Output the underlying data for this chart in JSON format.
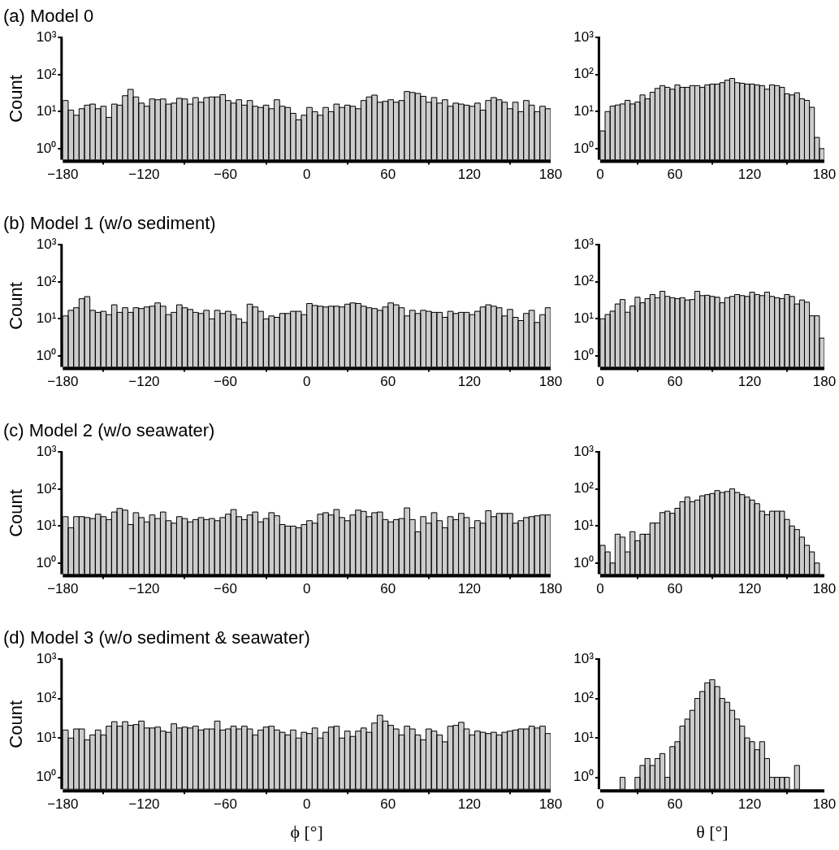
{
  "chart_data": [
    {
      "type": "histogram",
      "title": "(a) Model 0",
      "ylabel": "Count",
      "color": "#cccccc",
      "log": true,
      "ylim": [
        0.5,
        1000
      ],
      "yticks": [
        {
          "value": 1,
          "label": "10⁰"
        },
        {
          "value": 10,
          "label": "10¹"
        },
        {
          "value": 100,
          "label": "10²"
        },
        {
          "value": 1000,
          "label": "10³"
        }
      ],
      "xlim": [
        -180,
        180
      ],
      "xticks": [
        {
          "value": -180,
          "label": "−180"
        },
        {
          "value": -120,
          "label": "−120"
        },
        {
          "value": -60,
          "label": "−60"
        },
        0,
        60,
        120,
        180
      ],
      "bins": [
        -180,
        -176,
        -172,
        -168,
        -164,
        -160,
        -156,
        -152,
        -148,
        -144,
        -140,
        -136,
        -132,
        -128,
        -124,
        -120,
        -116,
        -112,
        -108,
        -104,
        -100,
        -96,
        -92,
        -88,
        -84,
        -80,
        -76,
        -72,
        -68,
        -64,
        -60,
        -56,
        -52,
        -48,
        -44,
        -40,
        -36,
        -32,
        -28,
        -24,
        -20,
        -16,
        -12,
        -8,
        -4,
        0,
        4,
        8,
        12,
        16,
        20,
        24,
        28,
        32,
        36,
        40,
        44,
        48,
        52,
        56,
        60,
        64,
        68,
        72,
        76,
        80,
        84,
        88,
        92,
        96,
        100,
        104,
        108,
        112,
        116,
        120,
        124,
        128,
        132,
        136,
        140,
        144,
        148,
        152,
        156,
        160,
        164,
        168,
        172,
        176,
        180
      ],
      "values": [
        20,
        11,
        8,
        12,
        15,
        16,
        12,
        14,
        7,
        16,
        15,
        27,
        40,
        25,
        17,
        14,
        22,
        21,
        22,
        16,
        17,
        23,
        22,
        16,
        24,
        18,
        24,
        25,
        25,
        29,
        20,
        17,
        21,
        15,
        20,
        14,
        13,
        15,
        12,
        21,
        14,
        13,
        9,
        6,
        8,
        13,
        10,
        8,
        13,
        10,
        16,
        13,
        15,
        14,
        12,
        20,
        25,
        28,
        18,
        19,
        21,
        18,
        20,
        35,
        33,
        31,
        26,
        18,
        24,
        17,
        21,
        14,
        17,
        16,
        15,
        14,
        17,
        11,
        20,
        24,
        21,
        18,
        12,
        18,
        10,
        20,
        15,
        10,
        14,
        12
      ]
    },
    {
      "type": "histogram",
      "color": "#cccccc",
      "log": true,
      "ylim": [
        0.5,
        1000
      ],
      "yticks": [
        {
          "value": 1,
          "label": "10⁰"
        },
        {
          "value": 10,
          "label": "10¹"
        },
        {
          "value": 100,
          "label": "10²"
        },
        {
          "value": 1000,
          "label": "10³"
        }
      ],
      "xlim": [
        0,
        180
      ],
      "xticks": [
        0,
        60,
        120,
        180
      ],
      "bins": [
        0,
        4,
        8,
        12,
        16,
        20,
        24,
        28,
        32,
        36,
        40,
        44,
        48,
        52,
        56,
        60,
        64,
        68,
        72,
        76,
        80,
        84,
        88,
        92,
        96,
        100,
        104,
        108,
        112,
        116,
        120,
        124,
        128,
        132,
        136,
        140,
        144,
        148,
        152,
        156,
        160,
        164,
        168,
        172,
        176,
        180
      ],
      "values": [
        3,
        10,
        14,
        15,
        16,
        20,
        16,
        18,
        28,
        22,
        33,
        42,
        50,
        45,
        40,
        52,
        45,
        45,
        50,
        50,
        45,
        52,
        55,
        55,
        60,
        70,
        78,
        60,
        58,
        55,
        55,
        52,
        50,
        40,
        52,
        50,
        45,
        30,
        28,
        32,
        22,
        20,
        13,
        2,
        1
      ]
    },
    {
      "type": "histogram",
      "title": "(b) Model 1 (w/o sediment)",
      "ylabel": "Count",
      "color": "#cccccc",
      "log": true,
      "ylim": [
        0.5,
        1000
      ],
      "yticks": [
        {
          "value": 1,
          "label": "10⁰"
        },
        {
          "value": 10,
          "label": "10¹"
        },
        {
          "value": 100,
          "label": "10²"
        },
        {
          "value": 1000,
          "label": "10³"
        }
      ],
      "xlim": [
        -180,
        180
      ],
      "xticks": [
        {
          "value": -180,
          "label": "−180"
        },
        {
          "value": -120,
          "label": "−120"
        },
        {
          "value": -60,
          "label": "−60"
        },
        0,
        60,
        120,
        180
      ],
      "bins": [
        -180,
        -176,
        -172,
        -168,
        -164,
        -160,
        -156,
        -152,
        -148,
        -144,
        -140,
        -136,
        -132,
        -128,
        -124,
        -120,
        -116,
        -112,
        -108,
        -104,
        -100,
        -96,
        -92,
        -88,
        -84,
        -80,
        -76,
        -72,
        -68,
        -64,
        -60,
        -56,
        -52,
        -48,
        -44,
        -40,
        -36,
        -32,
        -28,
        -24,
        -20,
        -16,
        -12,
        -8,
        -4,
        0,
        4,
        8,
        12,
        16,
        20,
        24,
        28,
        32,
        36,
        40,
        44,
        48,
        52,
        56,
        60,
        64,
        68,
        72,
        76,
        80,
        84,
        88,
        92,
        96,
        100,
        104,
        108,
        112,
        116,
        120,
        124,
        128,
        132,
        136,
        140,
        144,
        148,
        152,
        156,
        160,
        164,
        168,
        172,
        176,
        180
      ],
      "values": [
        12,
        17,
        20,
        35,
        40,
        17,
        15,
        16,
        13,
        24,
        15,
        20,
        15,
        20,
        19,
        21,
        22,
        27,
        22,
        13,
        15,
        24,
        20,
        18,
        15,
        14,
        17,
        10,
        17,
        14,
        16,
        13,
        10,
        8,
        25,
        21,
        16,
        10,
        12,
        11,
        14,
        14,
        16,
        16,
        13,
        26,
        23,
        22,
        21,
        22,
        22,
        21,
        25,
        27,
        26,
        22,
        20,
        19,
        17,
        21,
        27,
        24,
        20,
        12,
        17,
        14,
        17,
        16,
        15,
        15,
        11,
        16,
        14,
        15,
        15,
        13,
        16,
        21,
        24,
        22,
        20,
        12,
        18,
        11,
        9,
        14,
        17,
        8,
        13,
        20
      ]
    },
    {
      "type": "histogram",
      "color": "#cccccc",
      "log": true,
      "ylim": [
        0.5,
        1000
      ],
      "yticks": [
        {
          "value": 1,
          "label": "10⁰"
        },
        {
          "value": 10,
          "label": "10¹"
        },
        {
          "value": 100,
          "label": "10²"
        },
        {
          "value": 1000,
          "label": "10³"
        }
      ],
      "xlim": [
        0,
        180
      ],
      "xticks": [
        0,
        60,
        120,
        180
      ],
      "bins": [
        0,
        4,
        8,
        12,
        16,
        20,
        24,
        28,
        32,
        36,
        40,
        44,
        48,
        52,
        56,
        60,
        64,
        68,
        72,
        76,
        80,
        84,
        88,
        92,
        96,
        100,
        104,
        108,
        112,
        116,
        120,
        124,
        128,
        132,
        136,
        140,
        144,
        148,
        152,
        156,
        160,
        164,
        168,
        172,
        176,
        180
      ],
      "values": [
        10,
        13,
        16,
        25,
        33,
        15,
        22,
        38,
        27,
        35,
        45,
        37,
        55,
        40,
        37,
        35,
        37,
        32,
        33,
        55,
        42,
        43,
        40,
        38,
        27,
        37,
        40,
        45,
        42,
        40,
        52,
        45,
        42,
        52,
        40,
        37,
        35,
        45,
        40,
        25,
        32,
        28,
        12,
        12,
        3
      ]
    },
    {
      "type": "histogram",
      "title": "(c) Model 2 (w/o seawater)",
      "ylabel": "Count",
      "color": "#cccccc",
      "log": true,
      "ylim": [
        0.5,
        1000
      ],
      "yticks": [
        {
          "value": 1,
          "label": "10⁰"
        },
        {
          "value": 10,
          "label": "10¹"
        },
        {
          "value": 100,
          "label": "10²"
        },
        {
          "value": 1000,
          "label": "10³"
        }
      ],
      "xlim": [
        -180,
        180
      ],
      "xticks": [
        {
          "value": -180,
          "label": "−180"
        },
        {
          "value": -120,
          "label": "−120"
        },
        {
          "value": -60,
          "label": "−60"
        },
        0,
        60,
        120,
        180
      ],
      "bins": [
        -180,
        -176,
        -172,
        -168,
        -164,
        -160,
        -156,
        -152,
        -148,
        -144,
        -140,
        -136,
        -132,
        -128,
        -124,
        -120,
        -116,
        -112,
        -108,
        -104,
        -100,
        -96,
        -92,
        -88,
        -84,
        -80,
        -76,
        -72,
        -68,
        -64,
        -60,
        -56,
        -52,
        -48,
        -44,
        -40,
        -36,
        -32,
        -28,
        -24,
        -20,
        -16,
        -12,
        -8,
        -4,
        0,
        4,
        8,
        12,
        16,
        20,
        24,
        28,
        32,
        36,
        40,
        44,
        48,
        52,
        56,
        60,
        64,
        68,
        72,
        76,
        80,
        84,
        88,
        92,
        96,
        100,
        104,
        108,
        112,
        116,
        120,
        124,
        128,
        132,
        136,
        140,
        144,
        148,
        152,
        156,
        160,
        164,
        168,
        172,
        176,
        180
      ],
      "values": [
        18,
        9,
        18,
        18,
        17,
        16,
        21,
        18,
        15,
        24,
        30,
        27,
        11,
        23,
        17,
        13,
        20,
        16,
        24,
        14,
        12,
        18,
        16,
        13,
        15,
        17,
        15,
        16,
        14,
        17,
        21,
        28,
        18,
        15,
        20,
        24,
        13,
        16,
        23,
        19,
        11,
        10,
        10,
        9,
        11,
        14,
        12,
        21,
        23,
        20,
        28,
        17,
        14,
        20,
        27,
        25,
        18,
        23,
        24,
        15,
        13,
        15,
        16,
        31,
        15,
        7,
        18,
        12,
        23,
        14,
        9,
        18,
        15,
        22,
        17,
        9,
        14,
        12,
        26,
        18,
        22,
        22,
        22,
        12,
        14,
        17,
        18,
        19,
        20,
        20
      ]
    },
    {
      "type": "histogram",
      "color": "#cccccc",
      "log": true,
      "ylim": [
        0.5,
        1000
      ],
      "yticks": [
        {
          "value": 1,
          "label": "10⁰"
        },
        {
          "value": 10,
          "label": "10¹"
        },
        {
          "value": 100,
          "label": "10²"
        },
        {
          "value": 1000,
          "label": "10³"
        }
      ],
      "xlim": [
        0,
        180
      ],
      "xticks": [
        0,
        60,
        120,
        180
      ],
      "bins": [
        0,
        4,
        8,
        12,
        16,
        20,
        24,
        28,
        32,
        36,
        40,
        44,
        48,
        52,
        56,
        60,
        64,
        68,
        72,
        76,
        80,
        84,
        88,
        92,
        96,
        100,
        104,
        108,
        112,
        116,
        120,
        124,
        128,
        132,
        136,
        140,
        144,
        148,
        152,
        156,
        160,
        164,
        168,
        172,
        176,
        180
      ],
      "values": [
        3,
        2,
        1,
        6,
        5,
        2,
        7,
        4,
        6,
        6,
        12,
        12,
        23,
        25,
        22,
        30,
        45,
        60,
        45,
        50,
        65,
        70,
        75,
        90,
        80,
        85,
        100,
        80,
        70,
        60,
        50,
        40,
        25,
        20,
        25,
        25,
        25,
        15,
        10,
        8,
        5,
        3,
        2,
        1,
        null
      ]
    },
    {
      "type": "histogram",
      "title": "(d) Model 3 (w/o sediment & seawater)",
      "ylabel": "Count",
      "xlabel": "ϕ [°]",
      "color": "#cccccc",
      "log": true,
      "ylim": [
        0.5,
        1000
      ],
      "yticks": [
        {
          "value": 1,
          "label": "10⁰"
        },
        {
          "value": 10,
          "label": "10¹"
        },
        {
          "value": 100,
          "label": "10²"
        },
        {
          "value": 1000,
          "label": "10³"
        }
      ],
      "xlim": [
        -180,
        180
      ],
      "xticks": [
        {
          "value": -180,
          "label": "−180"
        },
        {
          "value": -120,
          "label": "−120"
        },
        {
          "value": -60,
          "label": "−60"
        },
        0,
        60,
        120,
        180
      ],
      "bins": [
        -180,
        -176,
        -172,
        -168,
        -164,
        -160,
        -156,
        -152,
        -148,
        -144,
        -140,
        -136,
        -132,
        -128,
        -124,
        -120,
        -116,
        -112,
        -108,
        -104,
        -100,
        -96,
        -92,
        -88,
        -84,
        -80,
        -76,
        -72,
        -68,
        -64,
        -60,
        -56,
        -52,
        -48,
        -44,
        -40,
        -36,
        -32,
        -28,
        -24,
        -20,
        -16,
        -12,
        -8,
        -4,
        0,
        4,
        8,
        12,
        16,
        20,
        24,
        28,
        32,
        36,
        40,
        44,
        48,
        52,
        56,
        60,
        64,
        68,
        72,
        76,
        80,
        84,
        88,
        92,
        96,
        100,
        104,
        108,
        112,
        116,
        120,
        124,
        128,
        132,
        136,
        140,
        144,
        148,
        152,
        156,
        160,
        164,
        168,
        172,
        176,
        180
      ],
      "values": [
        16,
        10,
        17,
        17,
        9,
        12,
        16,
        12,
        20,
        26,
        20,
        26,
        21,
        22,
        27,
        18,
        18,
        19,
        15,
        14,
        23,
        18,
        19,
        18,
        20,
        16,
        17,
        17,
        27,
        16,
        17,
        20,
        17,
        20,
        17,
        12,
        16,
        19,
        20,
        16,
        14,
        12,
        16,
        10,
        14,
        13,
        18,
        10,
        14,
        19,
        20,
        10,
        15,
        11,
        15,
        18,
        14,
        24,
        38,
        27,
        21,
        17,
        12,
        20,
        17,
        12,
        9,
        17,
        15,
        12,
        8,
        20,
        21,
        25,
        17,
        12,
        15,
        14,
        13,
        14,
        12,
        14,
        15,
        16,
        17,
        17,
        20,
        18,
        20,
        13
      ]
    },
    {
      "type": "histogram",
      "xlabel": "θ [°]",
      "color": "#cccccc",
      "log": true,
      "ylim": [
        0.5,
        1000
      ],
      "yticks": [
        {
          "value": 1,
          "label": "10⁰"
        },
        {
          "value": 10,
          "label": "10¹"
        },
        {
          "value": 100,
          "label": "10²"
        },
        {
          "value": 1000,
          "label": "10³"
        }
      ],
      "xlim": [
        0,
        180
      ],
      "xticks": [
        0,
        60,
        120,
        180
      ],
      "bins": [
        0,
        4,
        8,
        12,
        16,
        20,
        24,
        28,
        32,
        36,
        40,
        44,
        48,
        52,
        56,
        60,
        64,
        68,
        72,
        76,
        80,
        84,
        88,
        92,
        96,
        100,
        104,
        108,
        112,
        116,
        120,
        124,
        128,
        132,
        136,
        140,
        144,
        148,
        152,
        156,
        160,
        164,
        168,
        172,
        176,
        180
      ],
      "values": [
        null,
        null,
        null,
        null,
        1,
        null,
        null,
        1,
        2,
        3,
        2,
        3,
        4,
        1,
        6,
        8,
        20,
        30,
        50,
        100,
        150,
        250,
        300,
        200,
        100,
        80,
        50,
        30,
        20,
        10,
        8,
        5,
        8,
        3,
        1,
        1,
        1,
        1,
        null,
        2,
        null,
        null,
        null,
        null,
        null
      ]
    }
  ]
}
